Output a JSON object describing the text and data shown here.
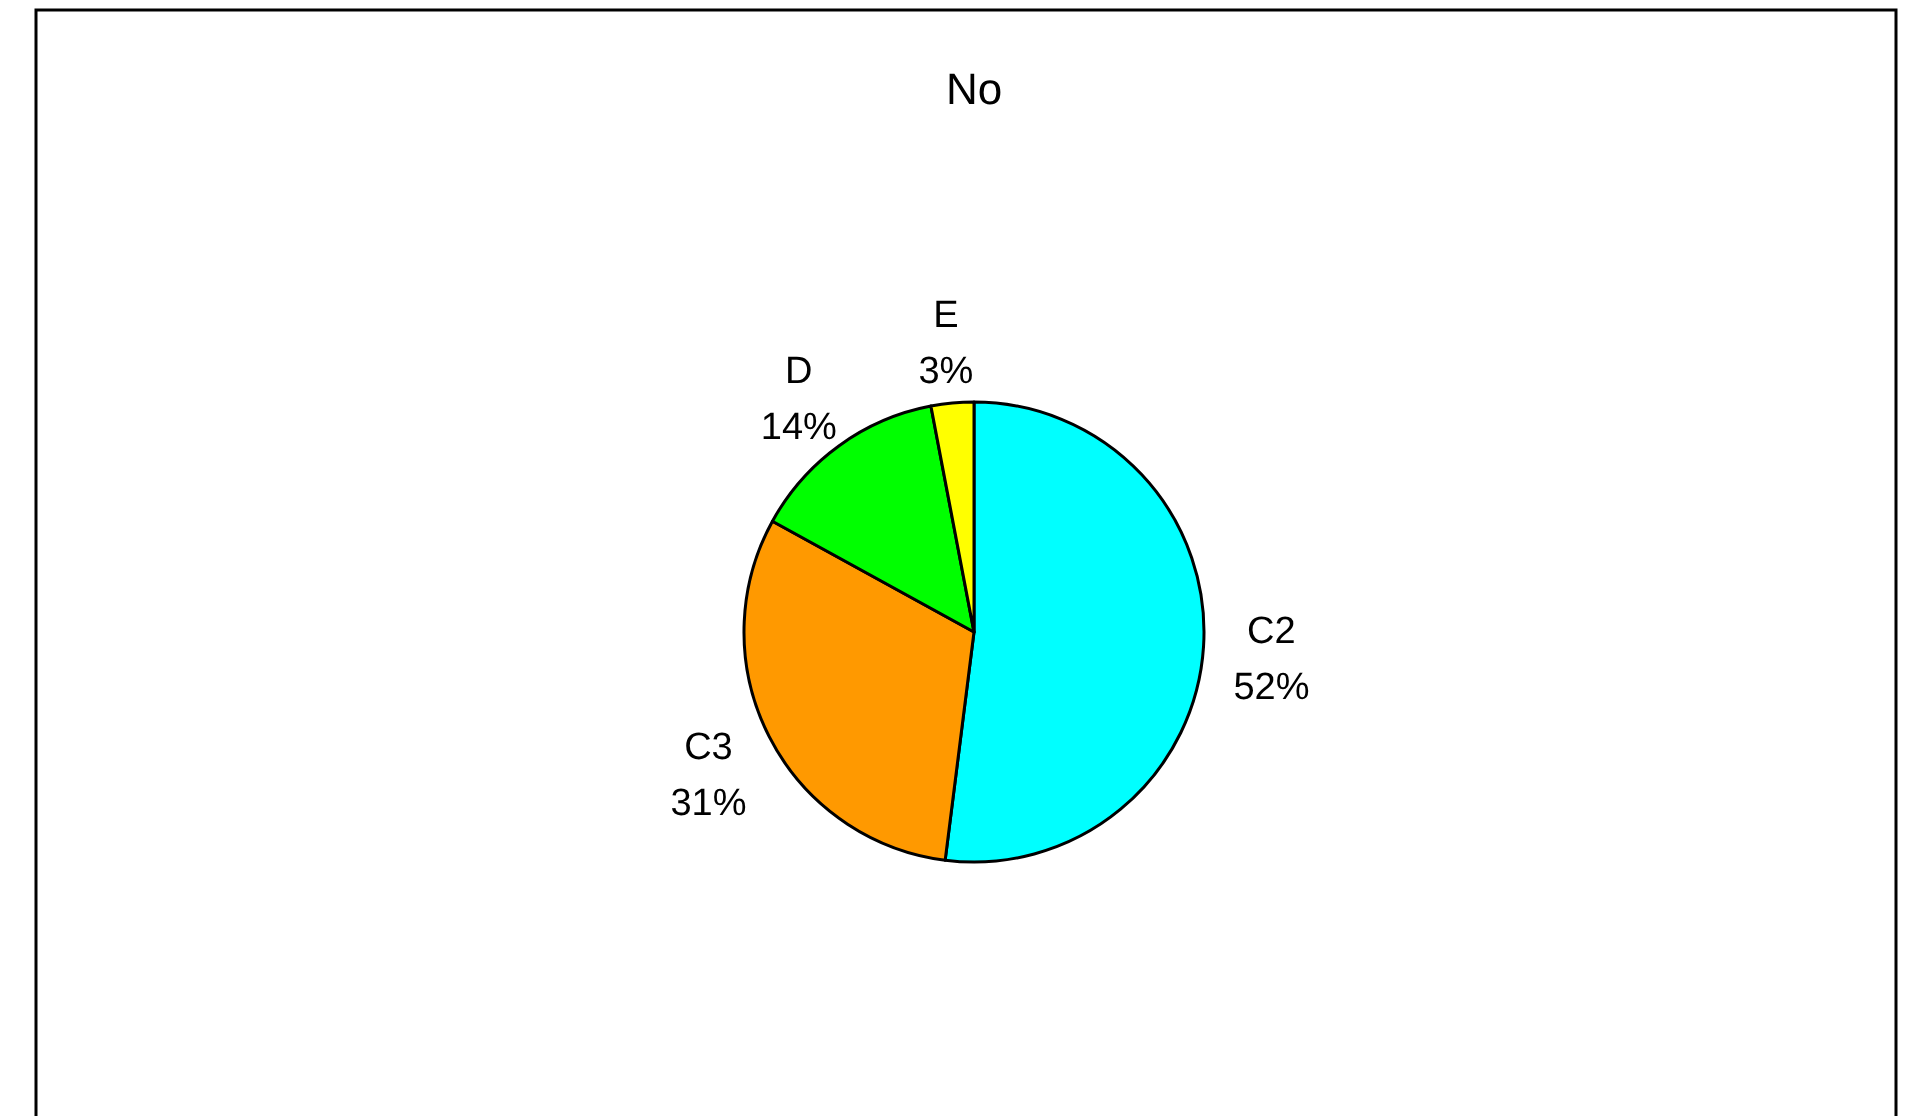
{
  "chart_data": {
    "type": "pie",
    "title": "No",
    "categories": [
      "C2",
      "C3",
      "D",
      "E"
    ],
    "values": [
      52,
      31,
      14,
      3
    ],
    "colors": [
      "#00ffff",
      "#ff9900",
      "#00ff00",
      "#ffff00"
    ],
    "value_labels": [
      "52%",
      "31%",
      "14%",
      "3%"
    ]
  }
}
